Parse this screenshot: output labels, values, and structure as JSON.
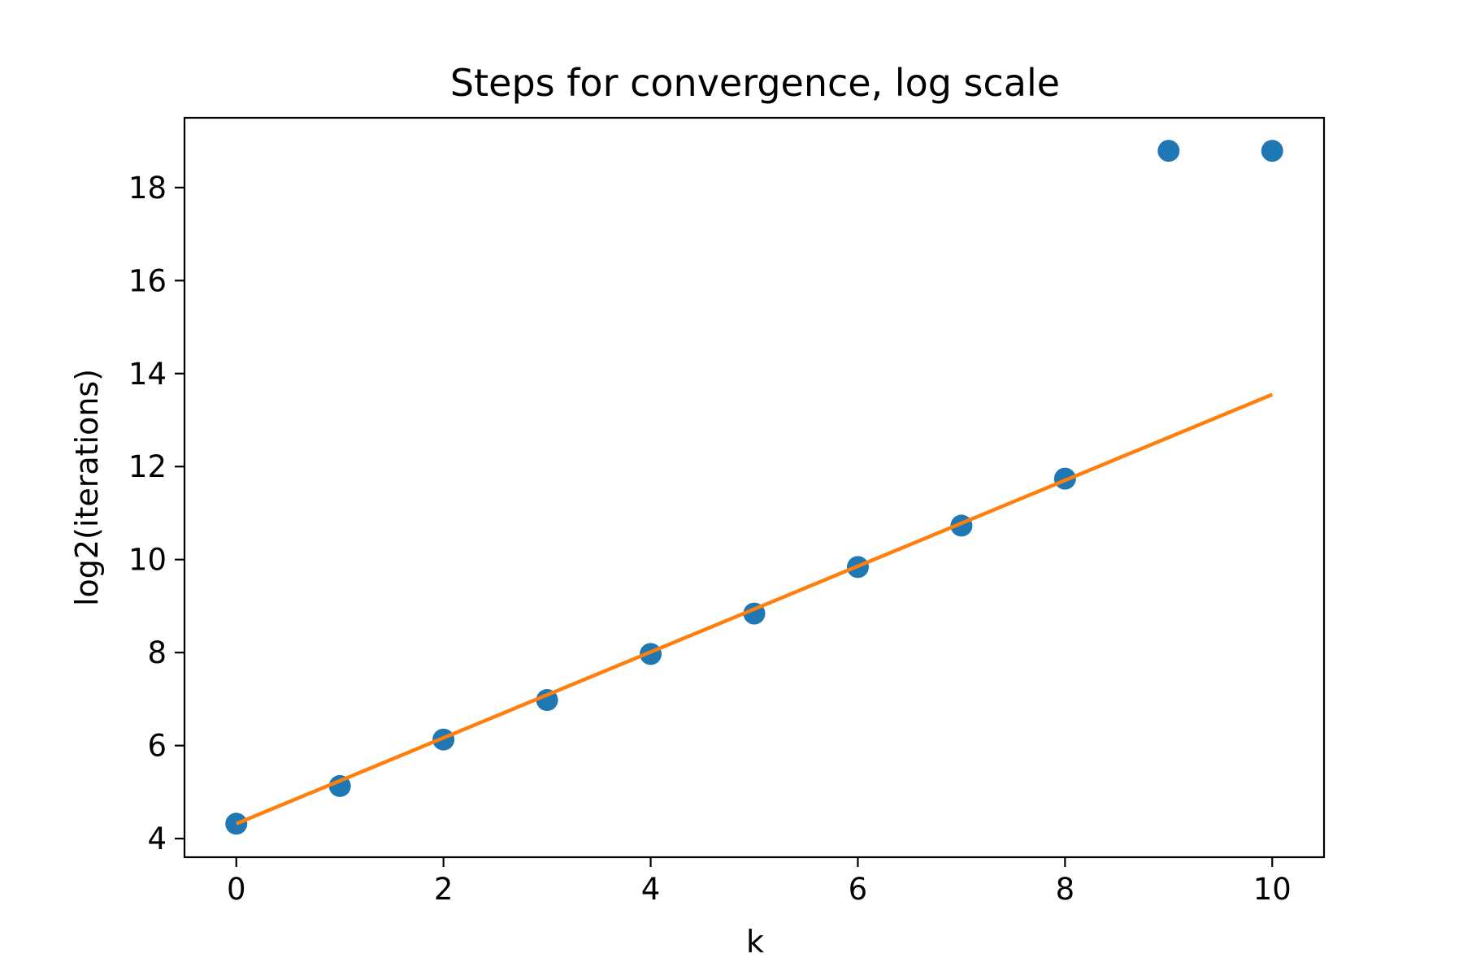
{
  "chart_data": {
    "type": "scatter",
    "title": "Steps for convergence, log scale",
    "xlabel": "k",
    "ylabel": "log2(iterations)",
    "xlim": [
      -0.5,
      10.5
    ],
    "ylim": [
      3.6,
      19.5
    ],
    "xticks": [
      0,
      2,
      4,
      6,
      8,
      10
    ],
    "yticks": [
      4,
      6,
      8,
      10,
      12,
      14,
      16,
      18
    ],
    "grid": false,
    "series": [
      {
        "kind": "scatter",
        "color": "#1f77b4",
        "x": [
          0,
          1,
          2,
          3,
          4,
          5,
          6,
          7,
          8,
          9,
          10
        ],
        "y": [
          4.32,
          5.13,
          6.13,
          6.98,
          7.97,
          8.84,
          9.84,
          10.73,
          11.74,
          18.79,
          18.79
        ]
      },
      {
        "kind": "line",
        "color": "#ff7f0e",
        "x": [
          0,
          10
        ],
        "y": [
          4.32,
          13.55
        ]
      }
    ]
  }
}
